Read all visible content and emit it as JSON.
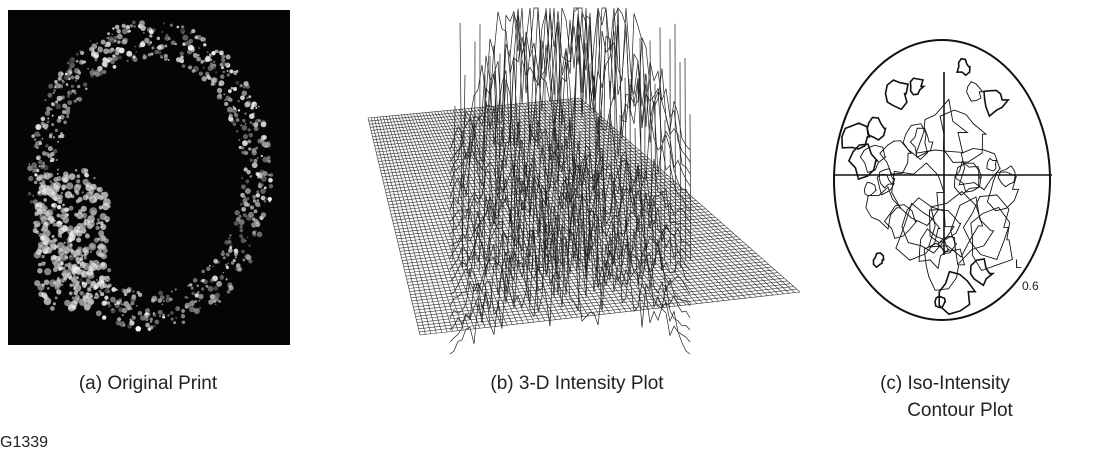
{
  "figure": {
    "panels": [
      {
        "caption": [
          "(a) Original Print"
        ]
      },
      {
        "caption": [
          "(b)  3-D Intensity Plot"
        ]
      },
      {
        "caption": [
          "(c)  Iso-Intensity",
          "Contour Plot"
        ],
        "contour_labels": [
          "L",
          "0.6"
        ]
      }
    ],
    "figure_id": "G1339"
  }
}
